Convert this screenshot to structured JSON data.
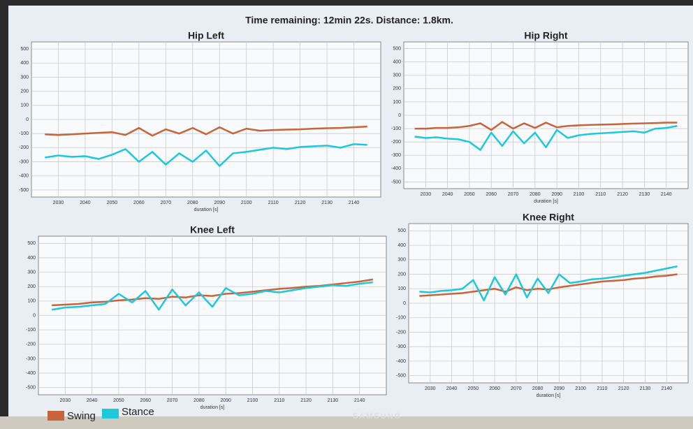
{
  "status": "Time remaining: 12min 22s. Distance: 1.8km.",
  "device_brand": "SAMSUNG",
  "chart_data": [
    {
      "type": "line",
      "title": "Hip Left",
      "xlabel": "duration [s]",
      "x": [
        2025,
        2030,
        2035,
        2040,
        2045,
        2050,
        2055,
        2060,
        2065,
        2070,
        2075,
        2080,
        2085,
        2090,
        2095,
        2100,
        2105,
        2110,
        2115,
        2120,
        2125,
        2130,
        2135,
        2140,
        2145
      ],
      "xlim": [
        2020,
        2150
      ],
      "xticks": [
        2030,
        2040,
        2050,
        2060,
        2070,
        2080,
        2090,
        2100,
        2110,
        2120,
        2130,
        2140
      ],
      "ylim": [
        -550,
        550
      ],
      "yticks": [
        -500,
        -400,
        -300,
        -200,
        -100,
        0,
        100,
        200,
        300,
        400,
        500
      ],
      "grid": true,
      "series": [
        {
          "name": "Swing",
          "color": "#c8643a",
          "values": [
            -105,
            -110,
            -105,
            -100,
            -95,
            -90,
            -110,
            -60,
            -115,
            -70,
            -100,
            -60,
            -105,
            -55,
            -100,
            -65,
            -80,
            -75,
            -72,
            -70,
            -65,
            -62,
            -60,
            -55,
            -50
          ]
        },
        {
          "name": "Stance",
          "color": "#1ec8dc",
          "values": [
            -270,
            -255,
            -265,
            -260,
            -280,
            -250,
            -210,
            -300,
            -230,
            -320,
            -240,
            -300,
            -220,
            -330,
            -240,
            -230,
            -215,
            -200,
            -210,
            -195,
            -190,
            -185,
            -200,
            -175,
            -180
          ]
        }
      ]
    },
    {
      "type": "line",
      "title": "Hip Right",
      "xlabel": "duration [s]",
      "x": [
        2025,
        2030,
        2035,
        2040,
        2045,
        2050,
        2055,
        2060,
        2065,
        2070,
        2075,
        2080,
        2085,
        2090,
        2095,
        2100,
        2105,
        2110,
        2115,
        2120,
        2125,
        2130,
        2135,
        2140,
        2145
      ],
      "xlim": [
        2020,
        2150
      ],
      "xticks": [
        2030,
        2040,
        2050,
        2060,
        2070,
        2080,
        2090,
        2100,
        2110,
        2120,
        2130,
        2140
      ],
      "ylim": [
        -550,
        550
      ],
      "yticks": [
        -500,
        -400,
        -300,
        -200,
        -100,
        0,
        100,
        200,
        300,
        400,
        500
      ],
      "grid": true,
      "series": [
        {
          "name": "Swing",
          "color": "#c8643a",
          "values": [
            -100,
            -100,
            -95,
            -95,
            -90,
            -80,
            -60,
            -110,
            -50,
            -100,
            -60,
            -95,
            -55,
            -90,
            -80,
            -75,
            -72,
            -70,
            -68,
            -65,
            -62,
            -60,
            -58,
            -55,
            -55
          ]
        },
        {
          "name": "Stance",
          "color": "#1ec8dc",
          "values": [
            -160,
            -170,
            -165,
            -175,
            -180,
            -200,
            -260,
            -130,
            -230,
            -120,
            -210,
            -130,
            -240,
            -110,
            -170,
            -150,
            -140,
            -135,
            -130,
            -125,
            -120,
            -130,
            -100,
            -95,
            -80
          ]
        }
      ]
    },
    {
      "type": "line",
      "title": "Knee Left",
      "xlabel": "duration [s]",
      "x": [
        2025,
        2030,
        2035,
        2040,
        2045,
        2050,
        2055,
        2060,
        2065,
        2070,
        2075,
        2080,
        2085,
        2090,
        2095,
        2100,
        2105,
        2110,
        2115,
        2120,
        2125,
        2130,
        2135,
        2140,
        2145
      ],
      "xlim": [
        2020,
        2150
      ],
      "xticks": [
        2030,
        2040,
        2050,
        2060,
        2070,
        2080,
        2090,
        2100,
        2110,
        2120,
        2130,
        2140
      ],
      "ylim": [
        -550,
        550
      ],
      "yticks": [
        -500,
        -400,
        -300,
        -200,
        -100,
        0,
        100,
        200,
        300,
        400,
        500
      ],
      "grid": true,
      "series": [
        {
          "name": "Swing",
          "color": "#c8643a",
          "values": [
            70,
            75,
            80,
            90,
            95,
            105,
            110,
            120,
            115,
            130,
            125,
            140,
            135,
            150,
            155,
            165,
            175,
            185,
            190,
            200,
            205,
            215,
            225,
            235,
            250
          ]
        },
        {
          "name": "Stance",
          "color": "#1ec8dc",
          "values": [
            40,
            55,
            60,
            70,
            80,
            150,
            90,
            170,
            40,
            180,
            70,
            160,
            60,
            190,
            140,
            150,
            170,
            160,
            175,
            190,
            200,
            210,
            205,
            220,
            230
          ]
        }
      ]
    },
    {
      "type": "line",
      "title": "Knee Right",
      "xlabel": "duration [s]",
      "x": [
        2025,
        2030,
        2035,
        2040,
        2045,
        2050,
        2055,
        2060,
        2065,
        2070,
        2075,
        2080,
        2085,
        2090,
        2095,
        2100,
        2105,
        2110,
        2115,
        2120,
        2125,
        2130,
        2135,
        2140,
        2145
      ],
      "xlim": [
        2020,
        2150
      ],
      "xticks": [
        2030,
        2040,
        2050,
        2060,
        2070,
        2080,
        2090,
        2100,
        2110,
        2120,
        2130,
        2140
      ],
      "ylim": [
        -550,
        550
      ],
      "yticks": [
        -500,
        -400,
        -300,
        -200,
        -100,
        0,
        100,
        200,
        300,
        400,
        500
      ],
      "grid": true,
      "series": [
        {
          "name": "Swing",
          "color": "#c8643a",
          "values": [
            50,
            55,
            60,
            65,
            70,
            80,
            90,
            100,
            80,
            110,
            90,
            100,
            95,
            110,
            120,
            130,
            140,
            150,
            155,
            160,
            170,
            175,
            185,
            190,
            200
          ]
        },
        {
          "name": "Stance",
          "color": "#1ec8dc",
          "values": [
            80,
            75,
            85,
            90,
            100,
            160,
            20,
            180,
            60,
            200,
            40,
            170,
            70,
            200,
            140,
            150,
            165,
            170,
            180,
            190,
            200,
            210,
            225,
            240,
            255
          ]
        }
      ]
    }
  ]
}
